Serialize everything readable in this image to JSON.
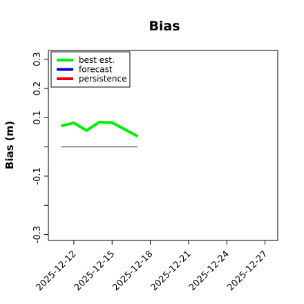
{
  "chart_data": {
    "type": "line",
    "title": "Bias",
    "xlabel": "",
    "ylabel": "Bias (m)",
    "ylim": [
      -0.32,
      0.33
    ],
    "yticks": [
      -0.3,
      -0.2,
      -0.1,
      0.0,
      0.1,
      0.2,
      0.3
    ],
    "ytick_labels": [
      "-0.3",
      "",
      "-0.1",
      "",
      "0.1",
      "0.2",
      "0.3"
    ],
    "x_range": [
      "2025-12-10",
      "2025-12-28"
    ],
    "xticks": [
      "2025-12-12",
      "2025-12-15",
      "2025-12-18",
      "2025-12-21",
      "2025-12-24",
      "2025-12-27"
    ],
    "highlighted_xtick": "2025-12-18",
    "highlight_color": "#228b22",
    "grid": false,
    "legend": {
      "position": "top-left",
      "entries": [
        {
          "label": "best est.",
          "color": "#00ee00"
        },
        {
          "label": "forecast",
          "color": "#0000ee"
        },
        {
          "label": "persistence",
          "color": "#ee0000"
        }
      ]
    },
    "series": [
      {
        "name": "best est.",
        "color": "#00ee00",
        "x": [
          "2025-12-11",
          "2025-12-12",
          "2025-12-13",
          "2025-12-14",
          "2025-12-15",
          "2025-12-16",
          "2025-12-17"
        ],
        "y": [
          0.072,
          0.082,
          0.056,
          0.085,
          0.083,
          0.06,
          0.036
        ]
      },
      {
        "name": "forecast",
        "color": "#0000ee",
        "x": [],
        "y": []
      },
      {
        "name": "persistence",
        "color": "#ee0000",
        "x": [],
        "y": []
      }
    ],
    "reference_line": {
      "color": "#555555",
      "x": [
        "2025-12-11",
        "2025-12-17"
      ],
      "y": 0.0
    }
  }
}
